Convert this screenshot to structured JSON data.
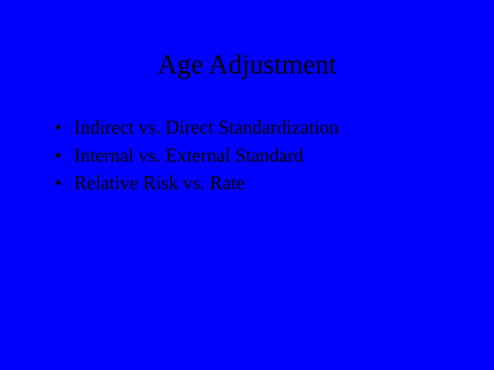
{
  "slide": {
    "background_color": "#0000ff",
    "text_color": "#000000",
    "font_family": "Times New Roman",
    "title": "Age Adjustment",
    "title_fontsize": 40,
    "bullet_fontsize": 28,
    "bullets": [
      "Indirect vs. Direct Standardization",
      "Internal vs. External Standard",
      "Relative Risk  vs. Rate"
    ]
  }
}
